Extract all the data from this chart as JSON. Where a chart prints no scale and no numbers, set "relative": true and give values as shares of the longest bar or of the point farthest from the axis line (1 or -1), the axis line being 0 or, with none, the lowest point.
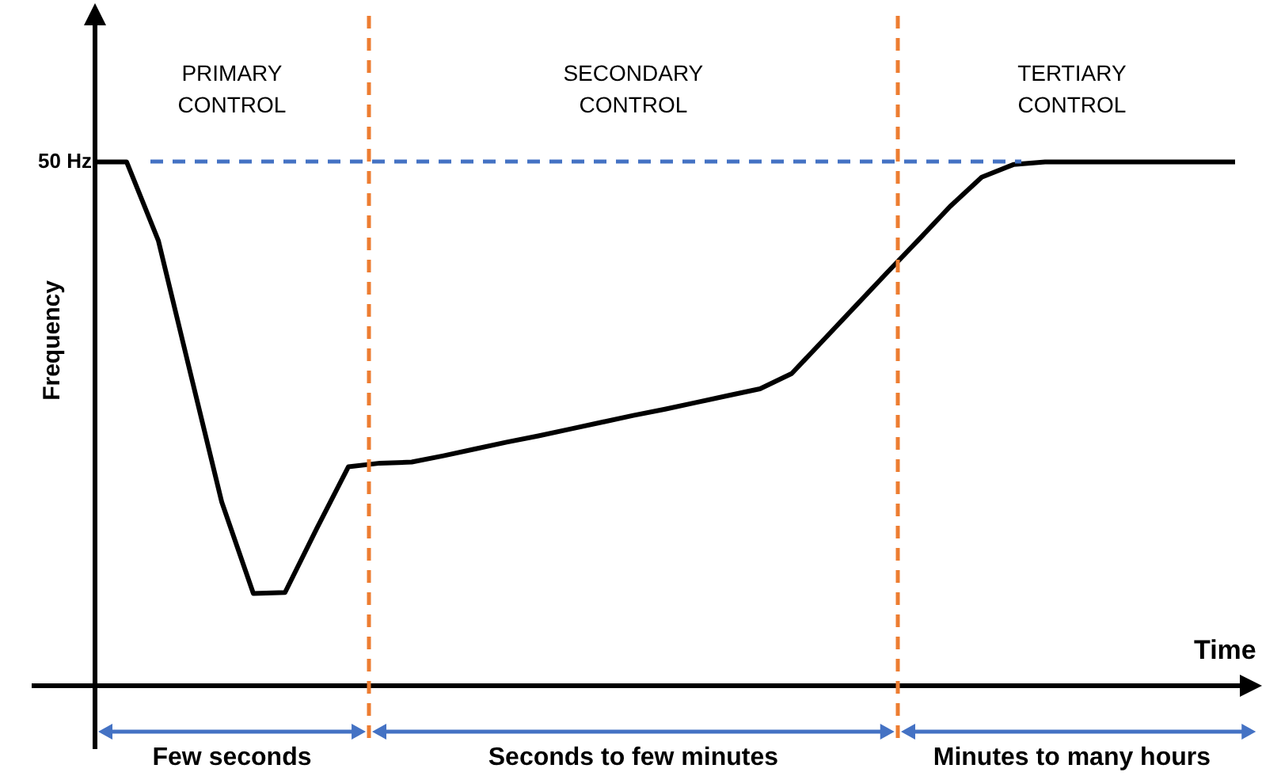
{
  "chart_data": {
    "type": "line",
    "relative": true,
    "xlabel": "Time",
    "ylabel": "Frequency",
    "marker": "none",
    "line_style": "solid",
    "categories": [
      null,
      null,
      null,
      null,
      null,
      null,
      null,
      null,
      null,
      null,
      null,
      null,
      null,
      null,
      null,
      null,
      null,
      null,
      null,
      null,
      null,
      null,
      null,
      null,
      null,
      null,
      null,
      null,
      null,
      null,
      null,
      null,
      null,
      null,
      null,
      null,
      null
    ],
    "series": [
      {
        "color": "#000000",
        "values": [
          1,
          1,
          0.85,
          0.6,
          0.351,
          0.176,
          0.178,
          0.3,
          0.418,
          0.425,
          0.427,
          0.439,
          0.452,
          0.465,
          0.477,
          0.49,
          0.503,
          0.516,
          0.528,
          0.541,
          0.554,
          0.567,
          0.596,
          0.66,
          0.724,
          0.788,
          0.851,
          0.915,
          0.971,
          0.995,
          1,
          1,
          1,
          1,
          1,
          1,
          1
        ]
      }
    ],
    "annotations": [
      "50 Hz",
      "PRIMARY CONTROL",
      "SECONDARY CONTROL",
      "TERTIARY CONTROL",
      "Few seconds",
      "Seconds to few minutes",
      "Minutes to many hours"
    ]
  }
}
